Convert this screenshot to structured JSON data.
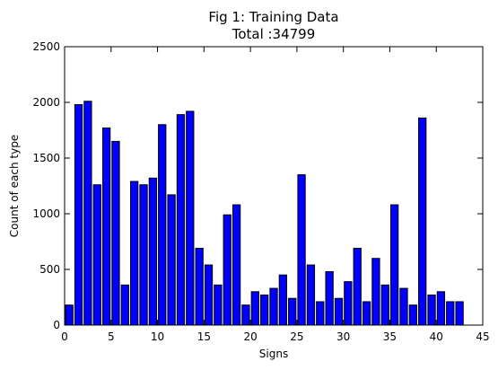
{
  "chart_data": {
    "type": "bar",
    "title_line1": "Fig 1: Training Data",
    "title_line2": "Total :34799",
    "xlabel": "Signs",
    "ylabel": "Count of each type",
    "xlim": [
      0,
      45
    ],
    "ylim": [
      0,
      2500
    ],
    "xticks": [
      0,
      5,
      10,
      15,
      20,
      25,
      30,
      35,
      40,
      45
    ],
    "yticks": [
      0,
      500,
      1000,
      1500,
      2000,
      2500
    ],
    "bar_color": "#0000ff",
    "edge_color": "#000000",
    "categories": [
      0,
      1,
      2,
      3,
      4,
      5,
      6,
      7,
      8,
      9,
      10,
      11,
      12,
      13,
      14,
      15,
      16,
      17,
      18,
      19,
      20,
      21,
      22,
      23,
      24,
      25,
      26,
      27,
      28,
      29,
      30,
      31,
      32,
      33,
      34,
      35,
      36,
      37,
      38,
      39,
      40,
      41,
      42
    ],
    "values": [
      180,
      1980,
      2010,
      1260,
      1770,
      1650,
      360,
      1290,
      1260,
      1320,
      1800,
      1170,
      1890,
      1920,
      690,
      540,
      360,
      990,
      1080,
      180,
      300,
      270,
      330,
      450,
      240,
      1350,
      540,
      210,
      480,
      240,
      390,
      690,
      210,
      599,
      360,
      1080,
      330,
      180,
      1860,
      270,
      300,
      210,
      210
    ]
  }
}
